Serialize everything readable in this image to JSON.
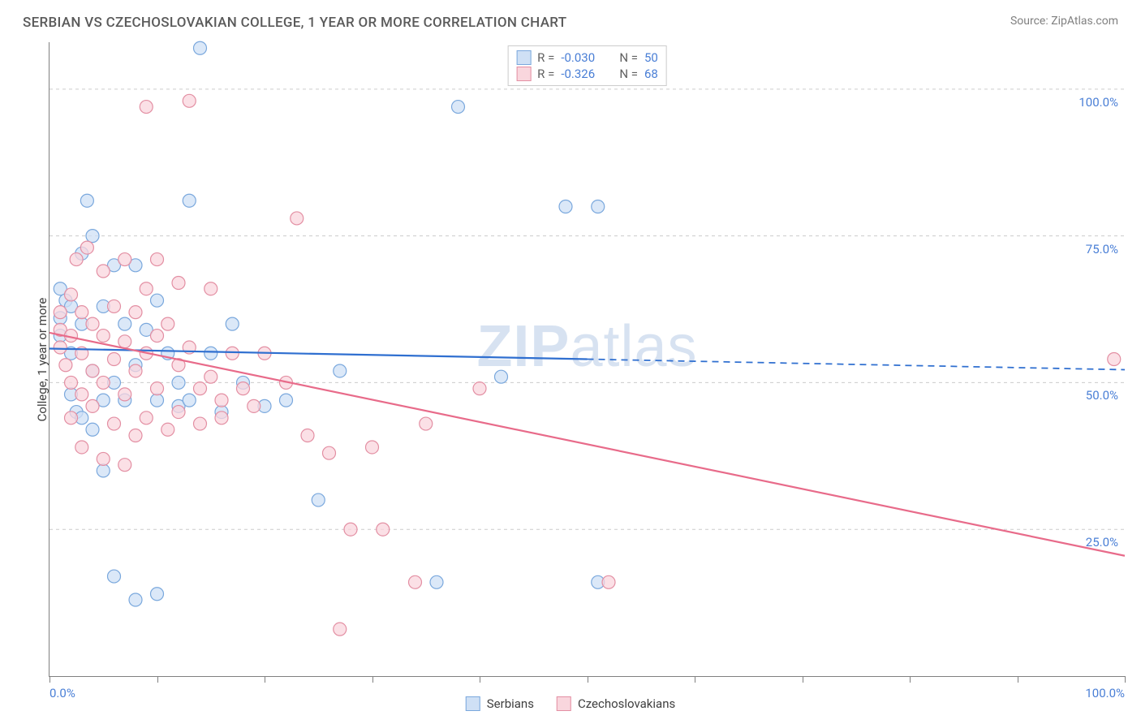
{
  "header": {
    "title": "SERBIAN VS CZECHOSLOVAKIAN COLLEGE, 1 YEAR OR MORE CORRELATION CHART",
    "source": "Source: ZipAtlas.com"
  },
  "watermark": {
    "zip": "ZIP",
    "atlas": "atlas"
  },
  "chart": {
    "type": "scatter",
    "y_label": "College, 1 year or more",
    "background_color": "#ffffff",
    "grid_color": "#cccccc",
    "axis_color": "#808080",
    "xlim": [
      0,
      100
    ],
    "ylim": [
      0,
      108
    ],
    "x_ticks": [
      0,
      10,
      20,
      30,
      40,
      50,
      60,
      70,
      80,
      90,
      100
    ],
    "x_start_label": "0.0%",
    "x_end_label": "100.0%",
    "y_gridlines": [
      {
        "v": 25,
        "label": "25.0%"
      },
      {
        "v": 50,
        "label": "50.0%"
      },
      {
        "v": 75,
        "label": "75.0%"
      },
      {
        "v": 100,
        "label": "100.0%"
      }
    ],
    "marker_radius": 8,
    "marker_stroke_width": 1.2,
    "line_width": 2.2,
    "series": [
      {
        "id": "serbians",
        "label": "Serbians",
        "fill": "#cfe0f5",
        "stroke": "#7aa8dd",
        "line_color": "#2f6fd0",
        "r_label": "R =",
        "r_value": "-0.030",
        "n_label": "N =",
        "n_value": "50",
        "trend": {
          "x1": 0,
          "y1": 55.8,
          "solid_until_x": 50,
          "x2": 100,
          "y2": 52.2
        },
        "points": [
          {
            "x": 1,
            "y": 58
          },
          {
            "x": 1,
            "y": 61
          },
          {
            "x": 1,
            "y": 66
          },
          {
            "x": 1.5,
            "y": 64
          },
          {
            "x": 2,
            "y": 55
          },
          {
            "x": 2,
            "y": 63
          },
          {
            "x": 2,
            "y": 48
          },
          {
            "x": 2.5,
            "y": 45
          },
          {
            "x": 3,
            "y": 72
          },
          {
            "x": 3,
            "y": 60
          },
          {
            "x": 3,
            "y": 44
          },
          {
            "x": 3.5,
            "y": 81
          },
          {
            "x": 4,
            "y": 75
          },
          {
            "x": 4,
            "y": 52
          },
          {
            "x": 4,
            "y": 42
          },
          {
            "x": 5,
            "y": 63
          },
          {
            "x": 5,
            "y": 47
          },
          {
            "x": 5,
            "y": 35
          },
          {
            "x": 6,
            "y": 70
          },
          {
            "x": 6,
            "y": 50
          },
          {
            "x": 6,
            "y": 17
          },
          {
            "x": 7,
            "y": 60
          },
          {
            "x": 7,
            "y": 47
          },
          {
            "x": 8,
            "y": 70
          },
          {
            "x": 8,
            "y": 53
          },
          {
            "x": 8,
            "y": 13
          },
          {
            "x": 9,
            "y": 59
          },
          {
            "x": 10,
            "y": 64
          },
          {
            "x": 10,
            "y": 47
          },
          {
            "x": 10,
            "y": 14
          },
          {
            "x": 11,
            "y": 55
          },
          {
            "x": 12,
            "y": 50
          },
          {
            "x": 12,
            "y": 46
          },
          {
            "x": 13,
            "y": 81
          },
          {
            "x": 13,
            "y": 47
          },
          {
            "x": 14,
            "y": 107
          },
          {
            "x": 15,
            "y": 55
          },
          {
            "x": 16,
            "y": 45
          },
          {
            "x": 17,
            "y": 60
          },
          {
            "x": 18,
            "y": 50
          },
          {
            "x": 20,
            "y": 46
          },
          {
            "x": 22,
            "y": 47
          },
          {
            "x": 25,
            "y": 30
          },
          {
            "x": 27,
            "y": 52
          },
          {
            "x": 36,
            "y": 16
          },
          {
            "x": 38,
            "y": 97
          },
          {
            "x": 42,
            "y": 51
          },
          {
            "x": 48,
            "y": 80
          },
          {
            "x": 51,
            "y": 80
          },
          {
            "x": 51,
            "y": 16
          }
        ]
      },
      {
        "id": "czechoslovakians",
        "label": "Czechoslovakians",
        "fill": "#f9d6dd",
        "stroke": "#e38fa3",
        "line_color": "#e86b8a",
        "r_label": "R =",
        "r_value": "-0.326",
        "n_label": "N =",
        "n_value": "68",
        "trend": {
          "x1": 0,
          "y1": 58.5,
          "solid_until_x": 100,
          "x2": 100,
          "y2": 20.5
        },
        "points": [
          {
            "x": 1,
            "y": 59
          },
          {
            "x": 1,
            "y": 62
          },
          {
            "x": 1,
            "y": 56
          },
          {
            "x": 1.5,
            "y": 53
          },
          {
            "x": 2,
            "y": 65
          },
          {
            "x": 2,
            "y": 58
          },
          {
            "x": 2,
            "y": 50
          },
          {
            "x": 2,
            "y": 44
          },
          {
            "x": 2.5,
            "y": 71
          },
          {
            "x": 3,
            "y": 62
          },
          {
            "x": 3,
            "y": 55
          },
          {
            "x": 3,
            "y": 48
          },
          {
            "x": 3,
            "y": 39
          },
          {
            "x": 3.5,
            "y": 73
          },
          {
            "x": 4,
            "y": 60
          },
          {
            "x": 4,
            "y": 52
          },
          {
            "x": 4,
            "y": 46
          },
          {
            "x": 5,
            "y": 69
          },
          {
            "x": 5,
            "y": 58
          },
          {
            "x": 5,
            "y": 50
          },
          {
            "x": 5,
            "y": 37
          },
          {
            "x": 6,
            "y": 63
          },
          {
            "x": 6,
            "y": 54
          },
          {
            "x": 6,
            "y": 43
          },
          {
            "x": 7,
            "y": 71
          },
          {
            "x": 7,
            "y": 57
          },
          {
            "x": 7,
            "y": 48
          },
          {
            "x": 7,
            "y": 36
          },
          {
            "x": 8,
            "y": 62
          },
          {
            "x": 8,
            "y": 52
          },
          {
            "x": 8,
            "y": 41
          },
          {
            "x": 9,
            "y": 97
          },
          {
            "x": 9,
            "y": 66
          },
          {
            "x": 9,
            "y": 55
          },
          {
            "x": 9,
            "y": 44
          },
          {
            "x": 10,
            "y": 71
          },
          {
            "x": 10,
            "y": 58
          },
          {
            "x": 10,
            "y": 49
          },
          {
            "x": 11,
            "y": 60
          },
          {
            "x": 11,
            "y": 42
          },
          {
            "x": 12,
            "y": 67
          },
          {
            "x": 12,
            "y": 53
          },
          {
            "x": 12,
            "y": 45
          },
          {
            "x": 13,
            "y": 98
          },
          {
            "x": 13,
            "y": 56
          },
          {
            "x": 14,
            "y": 49
          },
          {
            "x": 14,
            "y": 43
          },
          {
            "x": 15,
            "y": 66
          },
          {
            "x": 15,
            "y": 51
          },
          {
            "x": 16,
            "y": 47
          },
          {
            "x": 16,
            "y": 44
          },
          {
            "x": 17,
            "y": 55
          },
          {
            "x": 18,
            "y": 49
          },
          {
            "x": 19,
            "y": 46
          },
          {
            "x": 20,
            "y": 55
          },
          {
            "x": 22,
            "y": 50
          },
          {
            "x": 23,
            "y": 78
          },
          {
            "x": 24,
            "y": 41
          },
          {
            "x": 26,
            "y": 38
          },
          {
            "x": 27,
            "y": 8
          },
          {
            "x": 28,
            "y": 25
          },
          {
            "x": 30,
            "y": 39
          },
          {
            "x": 31,
            "y": 25
          },
          {
            "x": 34,
            "y": 16
          },
          {
            "x": 35,
            "y": 43
          },
          {
            "x": 40,
            "y": 49
          },
          {
            "x": 52,
            "y": 16
          },
          {
            "x": 99,
            "y": 54
          }
        ]
      }
    ]
  },
  "legend_bottom": [
    {
      "series": 0
    },
    {
      "series": 1
    }
  ]
}
